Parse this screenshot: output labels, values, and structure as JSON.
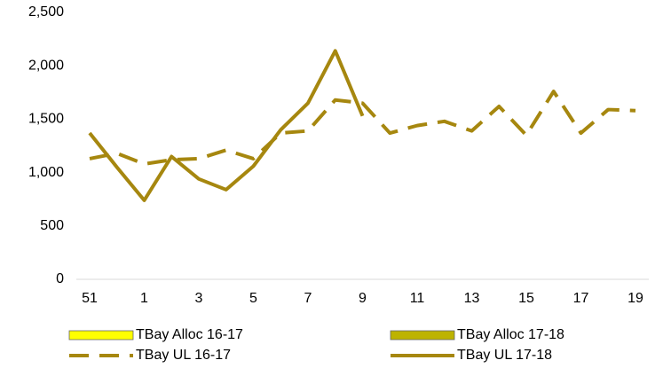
{
  "chart_data": {
    "type": "line",
    "categories": [
      "51",
      null,
      "1",
      null,
      "3",
      null,
      "5",
      null,
      "7",
      null,
      "9",
      null,
      "11",
      null,
      "13",
      null,
      "15",
      null,
      "17",
      null,
      "19"
    ],
    "series": [
      {
        "name": "TBay Alloc 16-17",
        "color": "#ffff00",
        "style": "box",
        "values": [
          null,
          null,
          null,
          null,
          null,
          null,
          null,
          null,
          null,
          null,
          null,
          null,
          null,
          null,
          null,
          null,
          null,
          null,
          null,
          null,
          null
        ]
      },
      {
        "name": "TBay Alloc 17-18",
        "color": "#bdb300",
        "style": "box",
        "values": [
          null,
          null,
          null,
          null,
          null,
          null,
          null,
          null,
          null,
          null,
          null,
          null,
          null,
          null,
          null,
          null,
          null,
          null,
          null,
          null,
          null
        ]
      },
      {
        "name": "TBay UL 16-17",
        "color": "#a6870f",
        "style": "dashed",
        "values": [
          1130,
          1180,
          1080,
          1120,
          1130,
          1210,
          1130,
          1370,
          1390,
          1680,
          1650,
          1370,
          1440,
          1480,
          1390,
          1620,
          1350,
          1760,
          1370,
          1590,
          1580
        ]
      },
      {
        "name": "TBay UL 17-18",
        "color": "#a6870f",
        "style": "solid",
        "values": [
          1370,
          1050,
          740,
          1150,
          940,
          840,
          1060,
          1400,
          1650,
          2140,
          1530,
          null,
          null,
          null,
          null,
          null,
          null,
          null,
          null,
          null,
          null
        ]
      }
    ],
    "ylim": [
      0,
      2500
    ],
    "yticks": [
      0,
      500,
      {
        "value": 1000,
        "label": "1,000"
      },
      {
        "value": 1500,
        "label": "1,500"
      },
      {
        "value": 2000,
        "label": "2,000"
      },
      {
        "value": 2500,
        "label": "2,500"
      }
    ]
  }
}
